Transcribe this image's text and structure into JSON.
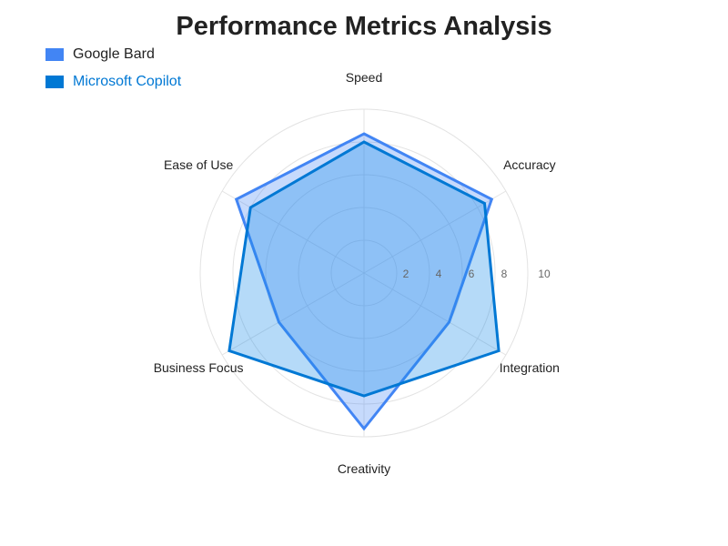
{
  "chart_data": {
    "type": "radar",
    "title": "Performance Metrics Analysis",
    "axes": [
      "Speed",
      "Accuracy",
      "Integration",
      "Creativity",
      "Business Focus",
      "Ease of Use"
    ],
    "range": [
      0,
      10
    ],
    "ticks": [
      2,
      4,
      6,
      8,
      10
    ],
    "legend_position": "top-left",
    "series": [
      {
        "name": "Google Bard",
        "values": [
          8.5,
          9,
          6,
          9.5,
          6,
          9
        ],
        "color": "#4285f4",
        "fill": "#4285f4"
      },
      {
        "name": "Microsoft Copilot",
        "values": [
          8,
          8.5,
          9.5,
          7.5,
          9.5,
          8
        ],
        "color": "#0078d4",
        "fill": "#1a8be8"
      }
    ],
    "legend_label_colors": [
      "#222222",
      "#0078d4"
    ],
    "grid_color": "#e3e3e3"
  }
}
